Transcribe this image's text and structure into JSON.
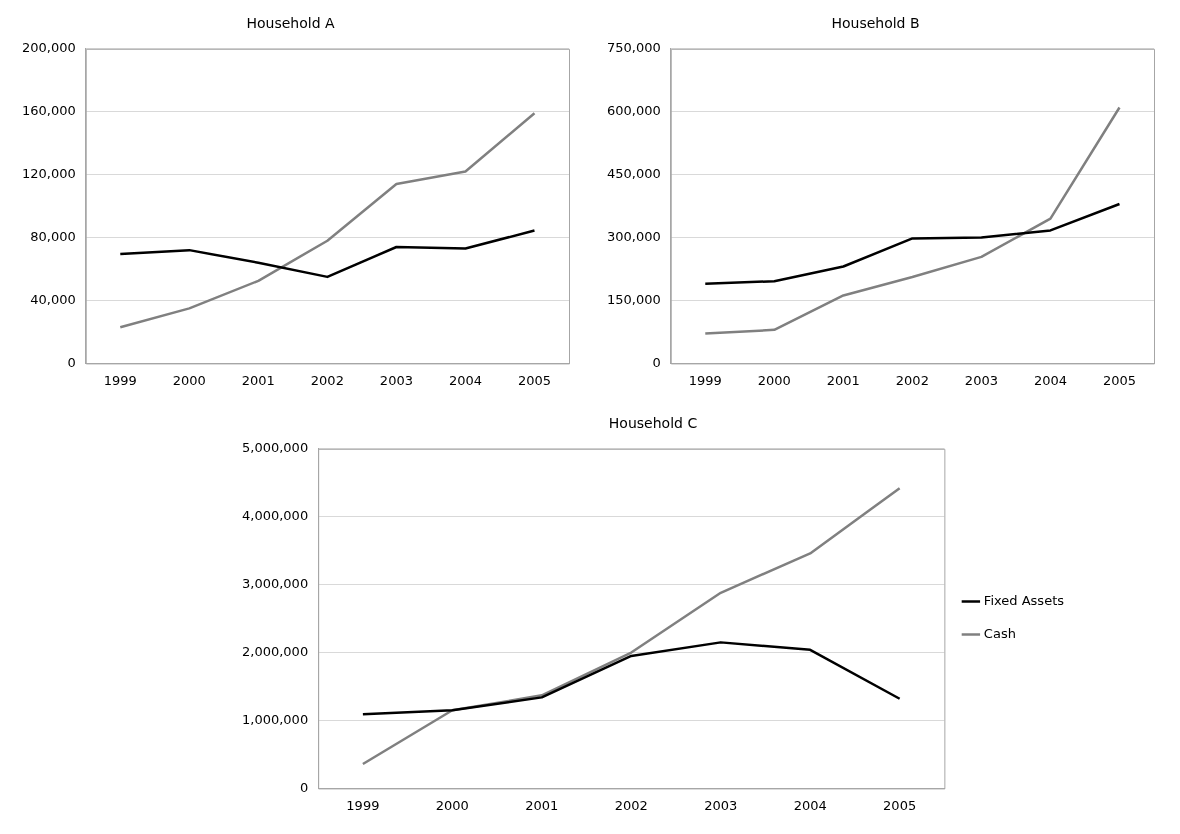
{
  "chart_data": [
    {
      "type": "line",
      "title": "Household A",
      "categories": [
        "1999",
        "2000",
        "2001",
        "2002",
        "2003",
        "2004",
        "2005"
      ],
      "series": [
        {
          "color": "#000000",
          "values": [
            69500,
            72000,
            64000,
            55000,
            74000,
            73000,
            84500
          ]
        },
        {
          "color": "#808080",
          "values": [
            23000,
            35000,
            52500,
            78000,
            114000,
            122000,
            159000
          ]
        }
      ],
      "ylim": [
        0,
        200000
      ],
      "yticks": [
        {
          "value": 0,
          "label": "0"
        },
        {
          "value": 40000,
          "label": "40,000"
        },
        {
          "value": 80000,
          "label": "80,000"
        },
        {
          "value": 120000,
          "label": "120,000"
        },
        {
          "value": 160000,
          "label": "160,000"
        },
        {
          "value": 200000,
          "label": "200,000"
        }
      ],
      "grid": "y",
      "marker": "none",
      "line_style": "solid"
    },
    {
      "type": "line",
      "title": "Household B",
      "categories": [
        "1999",
        "2000",
        "2001",
        "2002",
        "2003",
        "2004",
        "2005"
      ],
      "series": [
        {
          "color": "#000000",
          "values": [
            190000,
            196000,
            231000,
            298000,
            300000,
            317000,
            380000
          ]
        },
        {
          "color": "#808080",
          "values": [
            71000,
            80000,
            162000,
            206000,
            254000,
            345000,
            610000
          ]
        }
      ],
      "ylim": [
        0,
        750000
      ],
      "yticks": [
        {
          "value": 0,
          "label": "0"
        },
        {
          "value": 150000,
          "label": "150,000"
        },
        {
          "value": 300000,
          "label": "300,000"
        },
        {
          "value": 450000,
          "label": "450,000"
        },
        {
          "value": 600000,
          "label": "600,000"
        },
        {
          "value": 750000,
          "label": "750,000"
        }
      ],
      "grid": "y",
      "marker": "none",
      "line_style": "solid"
    },
    {
      "type": "line",
      "title": "Household C",
      "categories": [
        "1999",
        "2000",
        "2001",
        "2002",
        "2003",
        "2004",
        "2005"
      ],
      "series": [
        {
          "name": "Fixed Assets",
          "color": "#000000",
          "values": [
            1090000,
            1150000,
            1340000,
            1950000,
            2150000,
            2040000,
            1320000
          ]
        },
        {
          "name": "Cash",
          "color": "#808080",
          "values": [
            360000,
            1150000,
            1370000,
            2000000,
            2880000,
            3460000,
            4420000
          ]
        }
      ],
      "ylim": [
        0,
        5000000
      ],
      "yticks": [
        {
          "value": 0,
          "label": "0"
        },
        {
          "value": 1000000,
          "label": "1,000,000"
        },
        {
          "value": 2000000,
          "label": "2,000,000"
        },
        {
          "value": 3000000,
          "label": "3,000,000"
        },
        {
          "value": 4000000,
          "label": "4,000,000"
        },
        {
          "value": 5000000,
          "label": "5,000,000"
        }
      ],
      "grid": "y",
      "legend": "right",
      "marker": "none",
      "line_style": "solid"
    }
  ]
}
